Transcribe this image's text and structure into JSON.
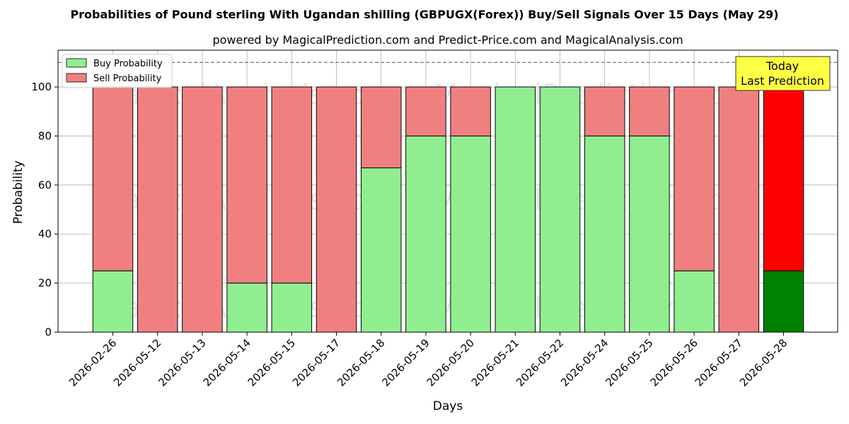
{
  "chart_data": {
    "type": "bar",
    "title": "Probabilities of Pound sterling With Ugandan shilling (GBPUGX(Forex)) Buy/Sell Signals Over 15 Days (May 29)",
    "subtitle": "powered by MagicalPrediction.com and Predict-Price.com and MagicalAnalysis.com",
    "xlabel": "Days",
    "ylabel": "Probability",
    "ylim": [
      0,
      115
    ],
    "yticks": [
      0,
      20,
      40,
      60,
      80,
      100
    ],
    "grid": true,
    "legend_position": "top-left",
    "categories": [
      "2026-02-26",
      "2026-05-12",
      "2026-05-13",
      "2026-05-14",
      "2026-05-15",
      "2026-05-17",
      "2026-05-18",
      "2026-05-19",
      "2026-05-20",
      "2026-05-21",
      "2026-05-22",
      "2026-05-24",
      "2026-05-25",
      "2026-05-26",
      "2026-05-27",
      "2026-05-28"
    ],
    "series": [
      {
        "name": "Buy Probability",
        "color": "#90ee90",
        "highlight_color": "#008000",
        "values": [
          25,
          0,
          0,
          20,
          20,
          0,
          67,
          80,
          80,
          100,
          100,
          80,
          80,
          25,
          0,
          25
        ]
      },
      {
        "name": "Sell Probability",
        "color": "#f08080",
        "highlight_color": "#ff0000",
        "values": [
          75,
          100,
          100,
          80,
          80,
          100,
          33,
          20,
          20,
          0,
          0,
          20,
          20,
          75,
          100,
          75
        ]
      }
    ],
    "reference_line": 110,
    "annotation": {
      "line1": "Today",
      "line2": "Last Prediction",
      "color": "#ffff44"
    },
    "watermarks": [
      "MagicalAnalysis.com",
      "MagicalPrediction.com"
    ]
  }
}
